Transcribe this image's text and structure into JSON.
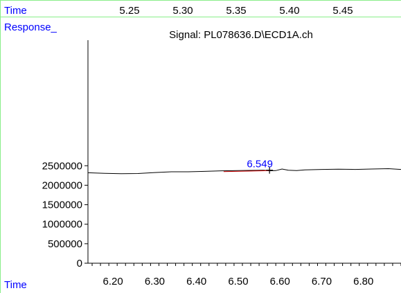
{
  "colors": {
    "label_blue": "#0000ff",
    "frame_green": "#88ee88",
    "trace": "#000000",
    "baseline": "#cc0000"
  },
  "chart_data": {
    "type": "line",
    "title": "Signal: PL078636.D\\ECD1A.ch",
    "top_axis_label": "Time",
    "top_ticks": [
      "5.25",
      "5.30",
      "5.35",
      "5.40",
      "5.45"
    ],
    "ylabel": "Response_",
    "xlabel": "Time",
    "y_ticks": [
      0,
      500000,
      1000000,
      1500000,
      2000000,
      2500000
    ],
    "y_tick_labels": [
      "0",
      "500000",
      "1000000",
      "1500000",
      "2000000",
      "2500000"
    ],
    "ylim": [
      0,
      2800000
    ],
    "xlim": [
      6.14,
      6.89
    ],
    "x_ticks": [
      6.2,
      6.3,
      6.4,
      6.5,
      6.6,
      6.7,
      6.8
    ],
    "x_tick_labels": [
      "6.20",
      "6.30",
      "6.40",
      "6.50",
      "6.60",
      "6.70",
      "6.80"
    ],
    "series": [
      {
        "x": [
          6.14,
          6.18,
          6.22,
          6.26,
          6.3,
          6.34,
          6.38,
          6.42,
          6.46,
          6.5,
          6.53,
          6.56,
          6.575,
          6.59,
          6.605,
          6.62,
          6.64,
          6.66,
          6.7,
          6.74,
          6.78,
          6.82,
          6.86,
          6.89
        ],
        "y": [
          2320000,
          2305000,
          2295000,
          2300000,
          2325000,
          2345000,
          2345000,
          2355000,
          2370000,
          2375000,
          2380000,
          2385000,
          2370000,
          2375000,
          2415000,
          2385000,
          2375000,
          2395000,
          2405000,
          2410000,
          2405000,
          2415000,
          2425000,
          2405000
        ]
      }
    ],
    "baseline": {
      "x": [
        6.465,
        6.575
      ],
      "y": [
        2350000,
        2375000
      ]
    },
    "peak": {
      "label": "6.549",
      "x": 6.575,
      "y": 2385000
    }
  }
}
